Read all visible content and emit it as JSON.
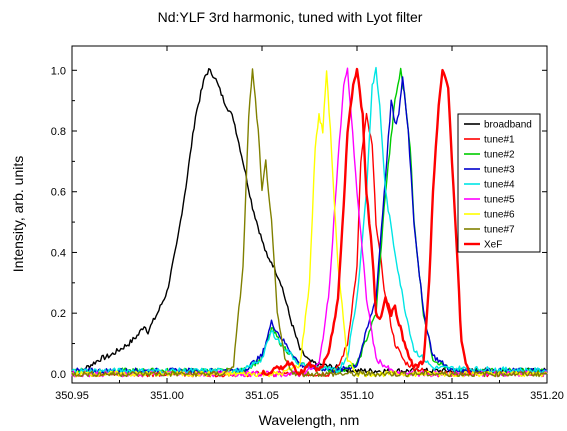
{
  "chart_data": {
    "type": "line",
    "title": "Nd:YLF 3rd harmonic, tuned with Lyot filter",
    "xlabel": "Wavelength, nm",
    "ylabel": "Intensity, arb. units",
    "xlim": [
      350.95,
      351.2
    ],
    "ylim": [
      -0.03,
      1.08
    ],
    "x_ticks": [
      350.95,
      351.0,
      351.05,
      351.1,
      351.15,
      351.2
    ],
    "x_tick_labels": [
      "350.95",
      "351.00",
      "351.05",
      "351.10",
      "351.15",
      "351.20"
    ],
    "y_ticks": [
      0.0,
      0.2,
      0.4,
      0.6,
      0.8,
      1.0
    ],
    "y_tick_labels": [
      "0.0",
      "0.2",
      "0.4",
      "0.6",
      "0.8",
      "1.0"
    ],
    "grid": false,
    "legend_position": "right",
    "series": [
      {
        "name": "broadband",
        "color": "#000000",
        "x": [
          350.95,
          350.955,
          350.96,
          350.965,
          350.97,
          350.975,
          350.98,
          350.985,
          350.988,
          350.99,
          350.995,
          351.0,
          351.005,
          351.01,
          351.015,
          351.02,
          351.022,
          351.025,
          351.03,
          351.035,
          351.04,
          351.045,
          351.05,
          351.053,
          351.055,
          351.06,
          351.065,
          351.07,
          351.075,
          351.08,
          351.09,
          351.1,
          351.12,
          351.15,
          351.2
        ],
        "y": [
          0.0,
          0.01,
          0.03,
          0.05,
          0.06,
          0.08,
          0.1,
          0.13,
          0.16,
          0.14,
          0.2,
          0.27,
          0.42,
          0.62,
          0.85,
          0.98,
          1.0,
          0.98,
          0.9,
          0.84,
          0.7,
          0.55,
          0.44,
          0.38,
          0.37,
          0.3,
          0.18,
          0.08,
          0.04,
          0.03,
          0.02,
          0.01,
          0.01,
          0.01,
          0.01
        ]
      },
      {
        "name": "tune#1",
        "color": "#ff0000",
        "x": [
          350.95,
          351.05,
          351.085,
          351.09,
          351.095,
          351.1,
          351.102,
          351.105,
          351.108,
          351.11,
          351.115,
          351.12,
          351.125,
          351.13,
          351.14,
          351.2
        ],
        "y": [
          0.0,
          0.0,
          0.0,
          0.02,
          0.1,
          0.35,
          0.7,
          0.85,
          0.75,
          0.5,
          0.25,
          0.1,
          0.04,
          0.02,
          0.0,
          0.0
        ]
      },
      {
        "name": "tune#2",
        "color": "#00cc00",
        "x": [
          350.95,
          351.04,
          351.05,
          351.055,
          351.06,
          351.07,
          351.09,
          351.1,
          351.11,
          351.115,
          351.12,
          351.123,
          351.125,
          351.128,
          351.13,
          351.135,
          351.14,
          351.15,
          351.2
        ],
        "y": [
          0.01,
          0.01,
          0.05,
          0.15,
          0.1,
          0.03,
          0.01,
          0.03,
          0.2,
          0.6,
          0.9,
          1.0,
          0.92,
          0.75,
          0.5,
          0.2,
          0.05,
          0.01,
          0.01
        ]
      },
      {
        "name": "tune#3",
        "color": "#0000cc",
        "x": [
          350.95,
          351.04,
          351.05,
          351.055,
          351.06,
          351.07,
          351.09,
          351.1,
          351.11,
          351.115,
          351.118,
          351.12,
          351.122,
          351.124,
          351.127,
          351.13,
          351.135,
          351.14,
          351.15,
          351.2
        ],
        "y": [
          0.01,
          0.01,
          0.06,
          0.17,
          0.12,
          0.03,
          0.01,
          0.03,
          0.25,
          0.65,
          0.9,
          0.82,
          0.85,
          0.98,
          0.8,
          0.5,
          0.2,
          0.06,
          0.01,
          0.01
        ]
      },
      {
        "name": "tune#4",
        "color": "#00e5e5",
        "x": [
          350.95,
          351.04,
          351.05,
          351.055,
          351.06,
          351.07,
          351.09,
          351.095,
          351.1,
          351.105,
          351.108,
          351.11,
          351.112,
          351.115,
          351.12,
          351.125,
          351.13,
          351.14,
          351.2
        ],
        "y": [
          0.01,
          0.01,
          0.05,
          0.14,
          0.1,
          0.03,
          0.01,
          0.06,
          0.25,
          0.6,
          0.95,
          1.0,
          0.88,
          0.6,
          0.4,
          0.22,
          0.08,
          0.02,
          0.01
        ]
      },
      {
        "name": "tune#5",
        "color": "#ff00ff",
        "x": [
          350.95,
          351.07,
          351.08,
          351.085,
          351.09,
          351.093,
          351.095,
          351.097,
          351.1,
          351.105,
          351.11,
          351.12,
          351.2
        ],
        "y": [
          0.0,
          0.0,
          0.03,
          0.25,
          0.7,
          0.95,
          1.0,
          0.85,
          0.6,
          0.25,
          0.05,
          0.0,
          0.0
        ]
      },
      {
        "name": "tune#6",
        "color": "#ffff00",
        "x": [
          350.95,
          351.06,
          351.07,
          351.075,
          351.078,
          351.08,
          351.082,
          351.084,
          351.086,
          351.09,
          351.095,
          351.1,
          351.2
        ],
        "y": [
          0.0,
          0.0,
          0.03,
          0.3,
          0.75,
          0.85,
          0.8,
          1.0,
          0.8,
          0.35,
          0.05,
          0.0,
          0.0
        ]
      },
      {
        "name": "tune#7",
        "color": "#808000",
        "x": [
          350.95,
          351.03,
          351.035,
          351.04,
          351.043,
          351.045,
          351.048,
          351.05,
          351.052,
          351.055,
          351.058,
          351.062,
          351.067,
          351.07,
          351.2
        ],
        "y": [
          0.0,
          0.0,
          0.03,
          0.35,
          0.85,
          1.0,
          0.8,
          0.6,
          0.7,
          0.5,
          0.2,
          0.05,
          0.0,
          0.0,
          0.0
        ]
      },
      {
        "name": "XeF",
        "color": "#ff0000",
        "x": [
          351.05,
          351.06,
          351.065,
          351.07,
          351.075,
          351.08,
          351.085,
          351.09,
          351.093,
          351.095,
          351.098,
          351.1,
          351.103,
          351.105,
          351.108,
          351.11,
          351.112,
          351.115,
          351.118,
          351.12,
          351.125,
          351.13,
          351.135,
          351.138,
          351.14,
          351.143,
          351.145,
          351.148,
          351.15,
          351.153,
          351.155,
          351.158,
          351.16
        ],
        "y": [
          0.0,
          0.02,
          0.04,
          0.0,
          0.03,
          0.01,
          0.06,
          0.25,
          0.55,
          0.8,
          0.95,
          1.0,
          0.85,
          0.6,
          0.4,
          0.2,
          0.18,
          0.25,
          0.2,
          0.22,
          0.1,
          0.02,
          0.04,
          0.3,
          0.6,
          0.88,
          1.0,
          0.95,
          0.7,
          0.35,
          0.1,
          0.02,
          0.0
        ]
      }
    ]
  }
}
